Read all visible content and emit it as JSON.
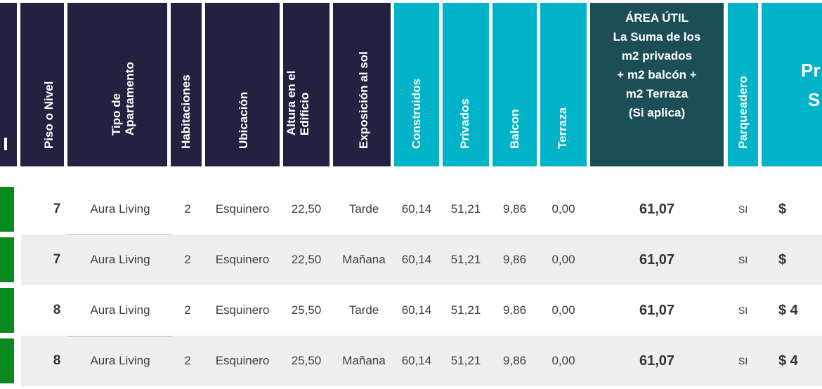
{
  "headers": {
    "piso": "Piso o Nivel",
    "tipo_line1": "Tipo de",
    "tipo_line2": "Apartamento",
    "habitaciones": "Habitaciones",
    "ubicacion": "Ubicación",
    "altura_line1": "Altura en el",
    "altura_line2": "Edificio",
    "exposicion": "Exposición al sol",
    "construidos": "Construidos",
    "privados": "Privados",
    "balcon": "Balcon",
    "terraza": "Terraza",
    "area_util": [
      "ÁREA ÚTIL",
      "La Suma de los",
      "m2 privados",
      "+ m2 balcón +",
      "m2 Terraza",
      "(Si aplica)"
    ],
    "parqueadero": "Parqueadero",
    "price_partial_1": "Pr",
    "price_partial_2": "S"
  },
  "rows": [
    {
      "piso": "7",
      "tipo": "Aura Living",
      "hab": "2",
      "ubicacion": "Esquinero",
      "altura": "22,50",
      "exposicion": "Tarde",
      "construidos": "60,14",
      "privados": "51,21",
      "balcon": "9,86",
      "terraza": "0,00",
      "area": "61,07",
      "parqueadero": "SI",
      "price": "$"
    },
    {
      "piso": "7",
      "tipo": "Aura Living",
      "hab": "2",
      "ubicacion": "Esquinero",
      "altura": "22,50",
      "exposicion": "Mañana",
      "construidos": "60,14",
      "privados": "51,21",
      "balcon": "9,86",
      "terraza": "0,00",
      "area": "61,07",
      "parqueadero": "SI",
      "price": "$"
    },
    {
      "piso": "8",
      "tipo": "Aura Living",
      "hab": "2",
      "ubicacion": "Esquinero",
      "altura": "25,50",
      "exposicion": "Tarde",
      "construidos": "60,14",
      "privados": "51,21",
      "balcon": "9,86",
      "terraza": "0,00",
      "area": "61,07",
      "parqueadero": "SI",
      "price": "$ 4"
    },
    {
      "piso": "8",
      "tipo": "Aura Living",
      "hab": "2",
      "ubicacion": "Esquinero",
      "altura": "25,50",
      "exposicion": "Mañana",
      "construidos": "60,14",
      "privados": "51,21",
      "balcon": "9,86",
      "terraza": "0,00",
      "area": "61,07",
      "parqueadero": "SI",
      "price": "$ 4"
    }
  ]
}
